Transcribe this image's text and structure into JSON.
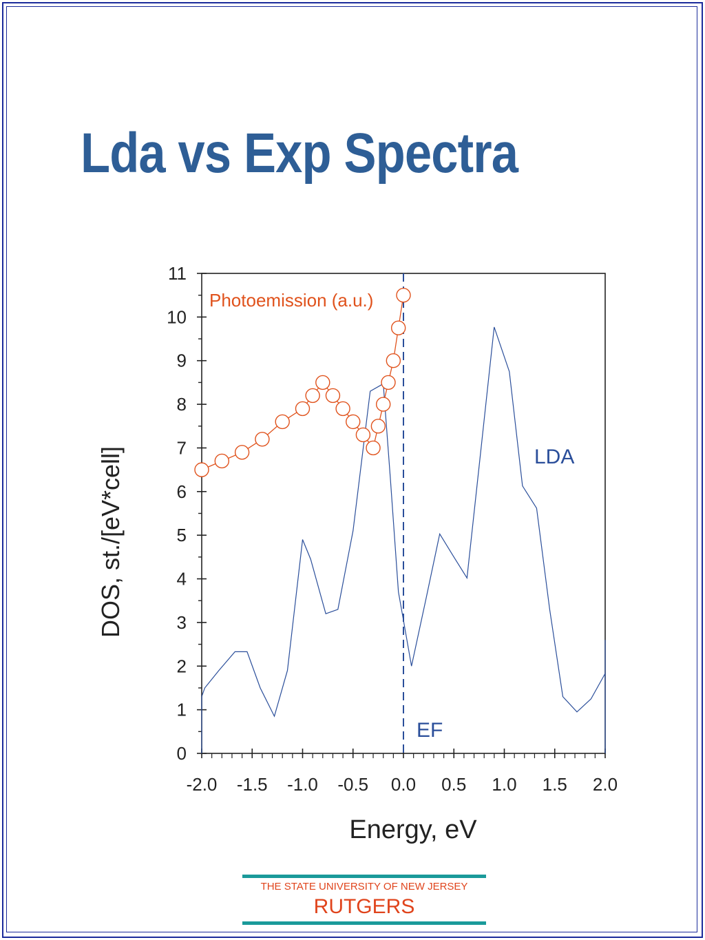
{
  "slide": {
    "title": "Lda vs Exp Spectra"
  },
  "logo": {
    "line1": "THE STATE UNIVERSITY OF NEW JERSEY",
    "line2": "RUTGERS"
  },
  "colors": {
    "title": "#2e5e96",
    "lda": "#2a4e9a",
    "photoemission": "#e0521c",
    "axis": "#222222",
    "logo_text": "#e0441c",
    "logo_bar": "#1a9a9a"
  },
  "chart_data": {
    "type": "line",
    "xlabel": "Energy, eV",
    "ylabel": "DOS, st./[eV*cell]",
    "xlim": [
      -2.0,
      2.0
    ],
    "ylim": [
      0,
      11
    ],
    "xticks": [
      "-2.0",
      "-1.5",
      "-1.0",
      "-0.5",
      "0.0",
      "0.5",
      "1.0",
      "1.5",
      "2.0"
    ],
    "yticks": [
      "0",
      "1",
      "2",
      "3",
      "4",
      "5",
      "6",
      "7",
      "8",
      "9",
      "10",
      "11"
    ],
    "fermi_level": {
      "x": 0.0,
      "label": "EF"
    },
    "series": [
      {
        "name": "LDA",
        "style": "line",
        "x": [
          -2.0,
          -1.97,
          -1.83,
          -1.67,
          -1.55,
          -1.42,
          -1.28,
          -1.15,
          -1.0,
          -0.92,
          -0.77,
          -0.65,
          -0.5,
          -0.33,
          -0.2,
          -0.13,
          -0.05,
          0.0,
          0.08,
          0.22,
          0.36,
          0.5,
          0.63,
          0.77,
          0.9,
          1.05,
          1.18,
          1.32,
          1.45,
          1.58,
          1.72,
          1.86,
          2.0
        ],
        "y": [
          1.3,
          1.5,
          1.9,
          2.33,
          2.33,
          1.5,
          0.85,
          1.9,
          4.9,
          4.45,
          3.2,
          3.3,
          5.1,
          8.3,
          8.47,
          6.3,
          3.7,
          3.05,
          2.0,
          3.5,
          5.03,
          4.5,
          4.02,
          7.0,
          9.77,
          8.75,
          6.13,
          5.62,
          3.3,
          1.3,
          0.95,
          1.25,
          1.83
        ]
      },
      {
        "name": "Photoemission (a.u.)",
        "style": "line-markers",
        "x": [
          -2.0,
          -1.8,
          -1.6,
          -1.4,
          -1.2,
          -1.0,
          -0.9,
          -0.8,
          -0.7,
          -0.6,
          -0.5,
          -0.4,
          -0.3,
          -0.25,
          -0.2,
          -0.15,
          -0.1,
          -0.05,
          0.0
        ],
        "y": [
          6.5,
          6.7,
          6.9,
          7.2,
          7.6,
          7.9,
          8.2,
          8.5,
          8.2,
          7.9,
          7.6,
          7.3,
          7.0,
          7.5,
          8.0,
          8.5,
          9.0,
          9.75,
          10.5
        ]
      }
    ],
    "annotations": [
      "Photoemission (a.u.)",
      "LDA",
      "EF"
    ]
  }
}
